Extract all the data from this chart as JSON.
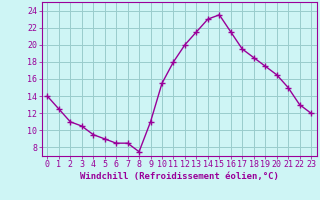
{
  "x": [
    0,
    1,
    2,
    3,
    4,
    5,
    6,
    7,
    8,
    9,
    10,
    11,
    12,
    13,
    14,
    15,
    16,
    17,
    18,
    19,
    20,
    21,
    22,
    23
  ],
  "y": [
    14,
    12.5,
    11,
    10.5,
    9.5,
    9,
    8.5,
    8.5,
    7.5,
    11,
    15.5,
    18,
    20,
    21.5,
    23,
    23.5,
    21.5,
    19.5,
    18.5,
    17.5,
    16.5,
    15,
    13,
    12
  ],
  "line_color": "#990099",
  "marker": "+",
  "marker_size": 4,
  "bg_color": "#cef5f5",
  "grid_color": "#99cccc",
  "xlabel": "Windchill (Refroidissement éolien,°C)",
  "xlabel_color": "#990099",
  "xlabel_fontsize": 6.5,
  "yticks": [
    8,
    10,
    12,
    14,
    16,
    18,
    20,
    22,
    24
  ],
  "xtick_labels": [
    "0",
    "1",
    "2",
    "3",
    "4",
    "5",
    "6",
    "7",
    "8",
    "9",
    "10",
    "11",
    "12",
    "13",
    "14",
    "15",
    "16",
    "17",
    "18",
    "19",
    "20",
    "21",
    "22",
    "23"
  ],
  "xlim": [
    -0.5,
    23.5
  ],
  "ylim": [
    7,
    25
  ],
  "tick_color": "#990099",
  "tick_fontsize": 6,
  "spine_color": "#990099",
  "line_width": 1.0
}
